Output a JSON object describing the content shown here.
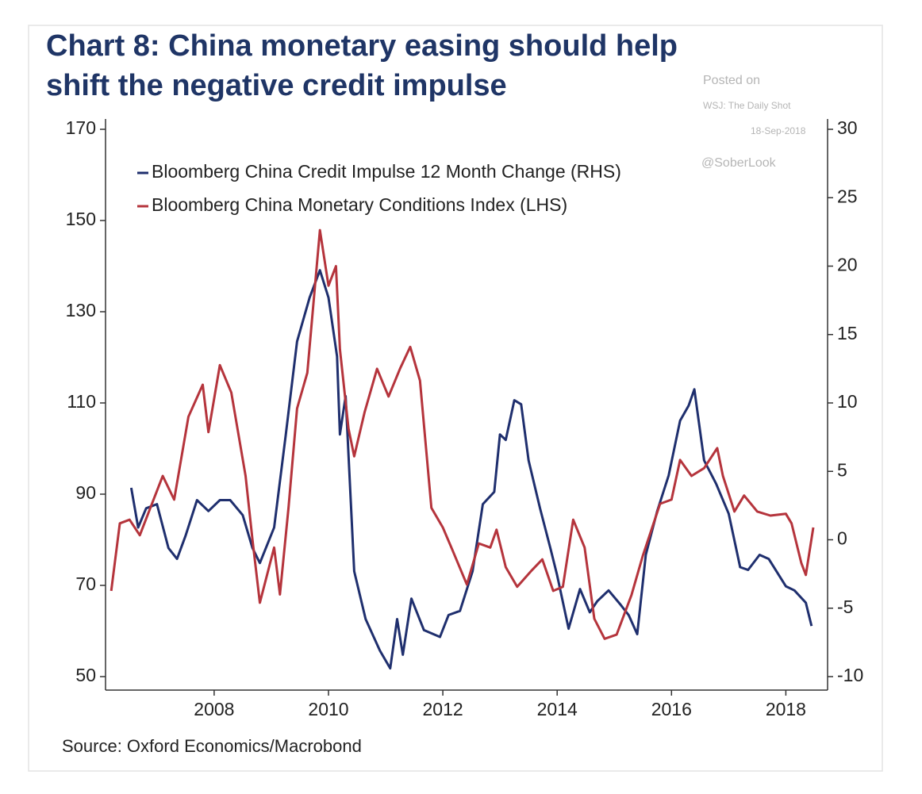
{
  "chart_data": {
    "type": "line",
    "title": [
      "Chart 8: China monetary easing should help",
      "shift the negative credit impulse"
    ],
    "annotations": [
      "Posted on",
      "WSJ: The Daily Shot",
      "18-Sep-2018",
      "@SoberLook"
    ],
    "source": "Source: Oxford Economics/Macrobond",
    "xlim": [
      2006.1,
      2018.73
    ],
    "xticks": [
      2008,
      2010,
      2012,
      2014,
      2016,
      2018
    ],
    "ylim": [
      50,
      170
    ],
    "yticks": [
      50,
      70,
      90,
      110,
      130,
      150,
      170
    ],
    "y2lim": [
      -10,
      30
    ],
    "y2ticks": [
      -10,
      -5,
      0,
      5,
      10,
      15,
      20,
      25,
      30
    ],
    "legend": "upper left",
    "series": [
      {
        "name": "Bloomberg China Credit Impulse 12 Month Change (RHS)",
        "color": "#1f2f6e",
        "axis": "y2",
        "x": [
          2006.55,
          2006.67,
          2006.81,
          2007.0,
          2007.2,
          2007.35,
          2007.5,
          2007.7,
          2007.9,
          2008.1,
          2008.28,
          2008.5,
          2008.67,
          2008.8,
          2009.05,
          2009.25,
          2009.45,
          2009.67,
          2009.85,
          2010.0,
          2010.15,
          2010.2,
          2010.3,
          2010.45,
          2010.65,
          2010.9,
          2011.08,
          2011.2,
          2011.3,
          2011.45,
          2011.67,
          2011.95,
          2012.1,
          2012.3,
          2012.52,
          2012.7,
          2012.9,
          2013.0,
          2013.1,
          2013.25,
          2013.37,
          2013.5,
          2013.7,
          2013.88,
          2014.0,
          2014.2,
          2014.4,
          2014.57,
          2014.7,
          2014.9,
          2015.1,
          2015.25,
          2015.4,
          2015.55,
          2015.75,
          2015.95,
          2016.15,
          2016.3,
          2016.4,
          2016.57,
          2016.78,
          2017.0,
          2017.2,
          2017.34,
          2017.54,
          2017.7,
          2018.0,
          2018.15,
          2018.35,
          2018.45
        ],
        "values": [
          3.8,
          0.9,
          2.3,
          2.6,
          -0.6,
          -1.4,
          0.3,
          2.9,
          2.1,
          2.9,
          2.9,
          1.8,
          -0.6,
          -1.7,
          0.9,
          7.6,
          14.5,
          17.7,
          19.7,
          17.7,
          13.4,
          7.7,
          10.5,
          -2.3,
          -5.8,
          -8.1,
          -9.4,
          -5.8,
          -8.4,
          -4.3,
          -6.6,
          -7.1,
          -5.5,
          -5.2,
          -2.3,
          2.6,
          3.5,
          7.7,
          7.3,
          10.2,
          9.9,
          5.8,
          2.3,
          -0.6,
          -2.6,
          -6.5,
          -3.6,
          -5.3,
          -4.5,
          -3.7,
          -4.7,
          -5.5,
          -6.9,
          -1.1,
          2.1,
          4.7,
          8.7,
          9.8,
          11.0,
          5.8,
          4.1,
          1.9,
          -2.0,
          -2.2,
          -1.1,
          -1.4,
          -3.4,
          -3.7,
          -4.6,
          -6.3
        ]
      },
      {
        "name": "Bloomberg China Monetary Conditions Index (LHS)",
        "color": "#b5343c",
        "axis": "y",
        "x": [
          2006.2,
          2006.35,
          2006.52,
          2006.7,
          2006.94,
          2007.1,
          2007.3,
          2007.55,
          2007.8,
          2007.9,
          2008.1,
          2008.3,
          2008.55,
          2008.67,
          2008.8,
          2009.05,
          2009.15,
          2009.3,
          2009.45,
          2009.63,
          2009.85,
          2010.0,
          2010.13,
          2010.2,
          2010.35,
          2010.45,
          2010.63,
          2010.85,
          2011.05,
          2011.25,
          2011.43,
          2011.6,
          2011.8,
          2012.0,
          2012.15,
          2012.42,
          2012.63,
          2012.83,
          2012.94,
          2013.1,
          2013.3,
          2013.54,
          2013.74,
          2013.93,
          2014.1,
          2014.28,
          2014.48,
          2014.65,
          2014.83,
          2015.04,
          2015.3,
          2015.5,
          2015.8,
          2016.0,
          2016.15,
          2016.35,
          2016.57,
          2016.8,
          2016.9,
          2017.1,
          2017.27,
          2017.5,
          2017.73,
          2018.0,
          2018.1,
          2018.27,
          2018.35,
          2018.48
        ],
        "values": [
          68.8,
          83.6,
          84.4,
          81,
          88.8,
          94,
          88.8,
          107,
          114,
          103.6,
          118.3,
          112.3,
          94,
          80,
          66.2,
          78.3,
          68,
          87,
          108.8,
          116.6,
          147.9,
          135.7,
          140,
          121.8,
          104.4,
          98.3,
          107.9,
          117.5,
          111.4,
          117.5,
          122.3,
          114.9,
          87,
          82.7,
          78.3,
          70.2,
          79.2,
          78.3,
          82.2,
          74,
          69.7,
          73.1,
          75.7,
          68.8,
          69.7,
          84.4,
          78.3,
          62.7,
          58.3,
          59.2,
          67.9,
          76.6,
          87.9,
          88.8,
          97.5,
          94,
          95.7,
          100.1,
          94,
          86.2,
          89.7,
          86.2,
          85.3,
          85.7,
          83.6,
          74.9,
          72.3,
          82.7
        ]
      }
    ]
  }
}
